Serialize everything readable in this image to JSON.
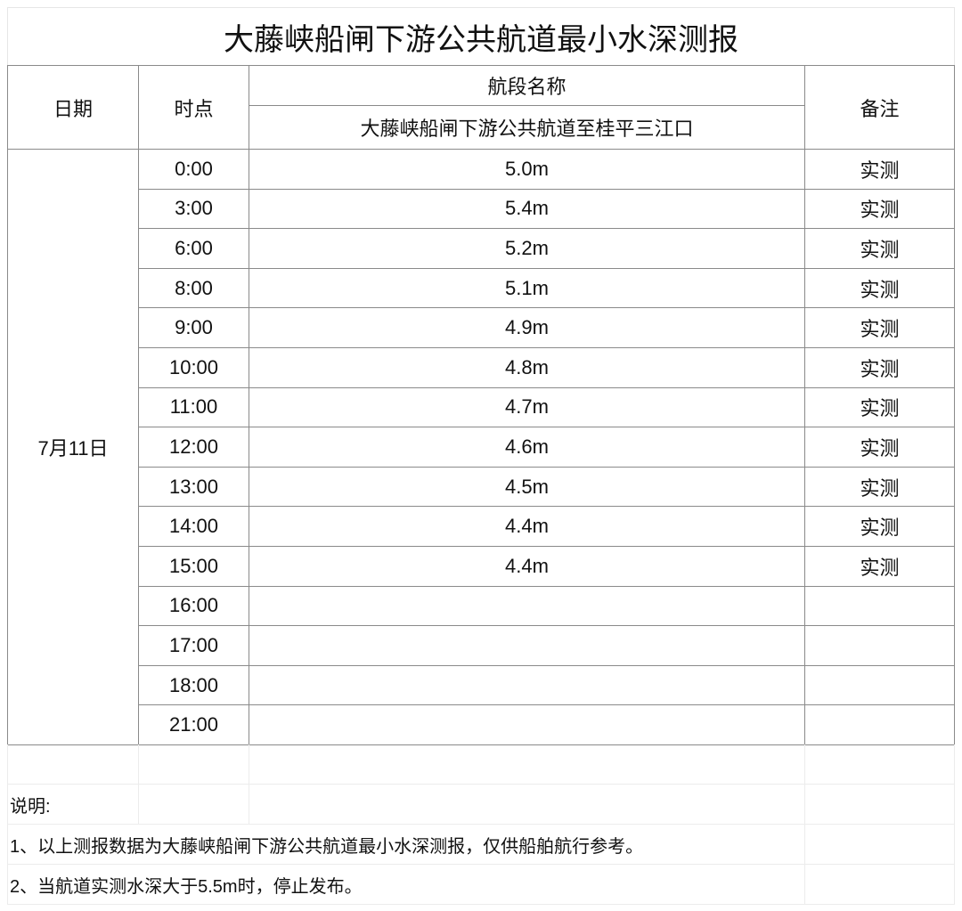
{
  "title": "大藤峡船闸下游公共航道最小水深测报",
  "header": {
    "date": "日期",
    "time": "时点",
    "segment_label": "航段名称",
    "segment_name": "大藤峡船闸下游公共航道至桂平三江口",
    "remark": "备注"
  },
  "date": "7月11日",
  "rows": [
    {
      "time": "0:00",
      "depth": "5.0m",
      "remark": "实测"
    },
    {
      "time": "3:00",
      "depth": "5.4m",
      "remark": "实测"
    },
    {
      "time": "6:00",
      "depth": "5.2m",
      "remark": "实测"
    },
    {
      "time": "8:00",
      "depth": "5.1m",
      "remark": "实测"
    },
    {
      "time": "9:00",
      "depth": "4.9m",
      "remark": "实测"
    },
    {
      "time": "10:00",
      "depth": "4.8m",
      "remark": "实测"
    },
    {
      "time": "11:00",
      "depth": "4.7m",
      "remark": "实测"
    },
    {
      "time": "12:00",
      "depth": "4.6m",
      "remark": "实测"
    },
    {
      "time": "13:00",
      "depth": "4.5m",
      "remark": "实测"
    },
    {
      "time": "14:00",
      "depth": "4.4m",
      "remark": "实测"
    },
    {
      "time": "15:00",
      "depth": "4.4m",
      "remark": "实测"
    },
    {
      "time": "16:00",
      "depth": "",
      "remark": ""
    },
    {
      "time": "17:00",
      "depth": "",
      "remark": ""
    },
    {
      "time": "18:00",
      "depth": "",
      "remark": ""
    },
    {
      "time": "21:00",
      "depth": "",
      "remark": ""
    }
  ],
  "notes": {
    "heading": "说明:",
    "items": [
      "1、以上测报数据为大藤峡船闸下游公共航道最小水深测报，仅供船舶航行参考。",
      "2、当航道实测水深大于5.5m时，停止发布。"
    ]
  }
}
